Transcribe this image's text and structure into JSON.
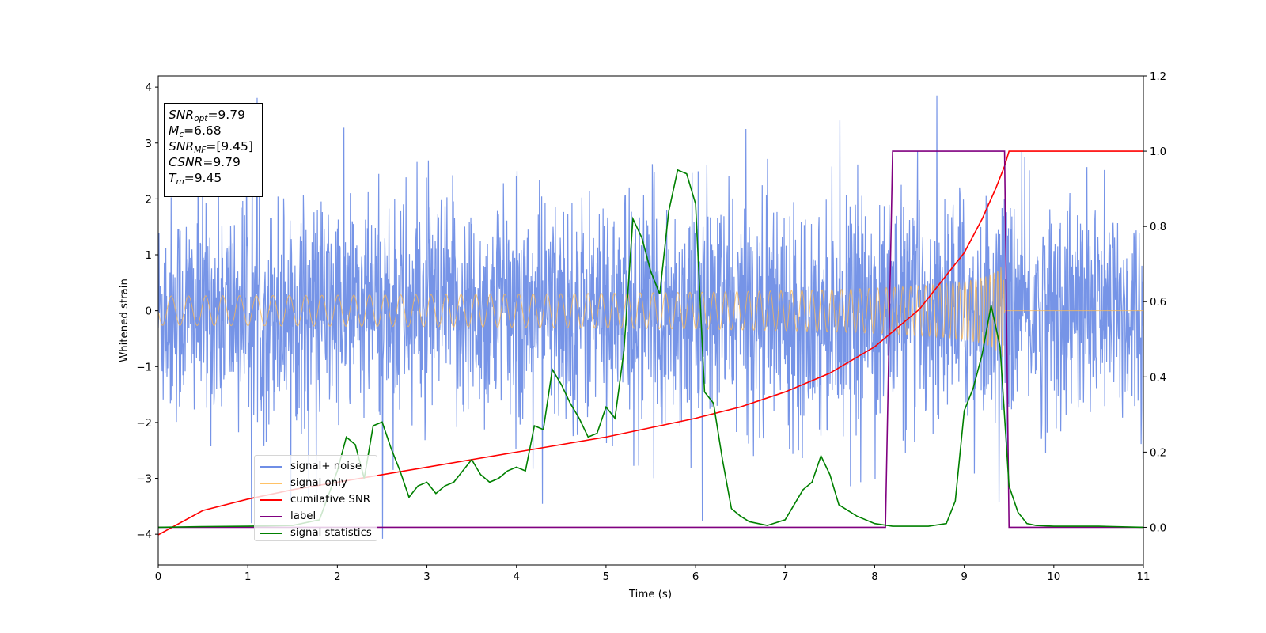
{
  "chart_data": {
    "type": "line",
    "xlabel": "Time (s)",
    "ylabel": "Whitened strain",
    "xlim": [
      0,
      11
    ],
    "ylim_left": [
      -4.55,
      4.2
    ],
    "ylim_right": [
      -0.1,
      1.2
    ],
    "x_ticks": [
      "0",
      "1",
      "2",
      "3",
      "4",
      "5",
      "6",
      "7",
      "8",
      "9",
      "10",
      "11"
    ],
    "y_left_ticks": [
      "−4",
      "−3",
      "−2",
      "−1",
      "0",
      "1",
      "2",
      "3",
      "4"
    ],
    "y_left_tick_values": [
      -4,
      -3,
      -2,
      -1,
      0,
      1,
      2,
      3,
      4
    ],
    "y_right_ticks": [
      "0.0",
      "0.2",
      "0.4",
      "0.6",
      "0.8",
      "1.0",
      "1.2"
    ],
    "y_right_tick_values": [
      0.0,
      0.2,
      0.4,
      0.6,
      0.8,
      1.0,
      1.2
    ],
    "annotation": {
      "snr_opt": {
        "base": "SNR",
        "sub": "opt",
        "value": "=9.79"
      },
      "mc": {
        "base": "M",
        "sub": "c",
        "value": "=6.68"
      },
      "snr_mf": {
        "base": "SNR",
        "sub": "MF",
        "value": "=[9.45]"
      },
      "csnr": {
        "base": "CSNR",
        "value": "=9.79"
      },
      "tm": {
        "base": "T",
        "sub": "m",
        "value": "=9.45"
      }
    },
    "series": [
      {
        "name": "signal+ noise",
        "axis": "left",
        "color": "#6f8ee6",
        "description_range": "noise with amplitude approx ±2.2, spikes to ±3.8"
      },
      {
        "name": "signal only",
        "axis": "left",
        "color": "#ffb84d",
        "description_range": "chirp amplitude growing from 0.05 to 0.9, ending at 9.45 s"
      },
      {
        "name": "cumilative SNR",
        "axis": "right",
        "color": "#ff0000",
        "x": [
          0,
          0.5,
          1,
          1.5,
          2,
          2.5,
          3,
          3.5,
          4,
          4.5,
          5,
          5.5,
          6,
          6.5,
          7,
          7.5,
          8,
          8.5,
          9,
          9.2,
          9.35,
          9.45,
          9.5,
          11
        ],
        "values": [
          -0.02,
          0.045,
          0.075,
          0.1,
          0.12,
          0.14,
          0.16,
          0.18,
          0.2,
          0.22,
          0.24,
          0.265,
          0.29,
          0.32,
          0.36,
          0.41,
          0.48,
          0.58,
          0.73,
          0.82,
          0.9,
          0.96,
          1.0,
          1.0
        ]
      },
      {
        "name": "label",
        "axis": "right",
        "color": "#800080",
        "x": [
          0,
          8.12,
          8.2,
          9.45,
          9.5,
          11
        ],
        "values": [
          0,
          0,
          1,
          1,
          0,
          0
        ]
      },
      {
        "name": "signal statistics",
        "axis": "right",
        "color": "#008000",
        "x": [
          0,
          0.5,
          1,
          1.5,
          1.8,
          2.0,
          2.1,
          2.2,
          2.3,
          2.4,
          2.5,
          2.6,
          2.7,
          2.8,
          2.9,
          3.0,
          3.1,
          3.2,
          3.3,
          3.4,
          3.5,
          3.6,
          3.7,
          3.8,
          3.9,
          4.0,
          4.1,
          4.2,
          4.3,
          4.4,
          4.5,
          4.6,
          4.7,
          4.8,
          4.9,
          5.0,
          5.1,
          5.2,
          5.3,
          5.4,
          5.5,
          5.6,
          5.7,
          5.8,
          5.9,
          6.0,
          6.1,
          6.2,
          6.3,
          6.4,
          6.5,
          6.6,
          6.8,
          7.0,
          7.1,
          7.2,
          7.3,
          7.4,
          7.5,
          7.6,
          7.8,
          8.0,
          8.2,
          8.6,
          8.8,
          8.9,
          9.0,
          9.1,
          9.2,
          9.3,
          9.4,
          9.5,
          9.6,
          9.7,
          9.8,
          10,
          10.5,
          11
        ],
        "values": [
          0.0,
          0.002,
          0.003,
          0.005,
          0.02,
          0.15,
          0.24,
          0.22,
          0.13,
          0.27,
          0.28,
          0.21,
          0.15,
          0.08,
          0.11,
          0.12,
          0.09,
          0.11,
          0.12,
          0.15,
          0.18,
          0.14,
          0.12,
          0.13,
          0.15,
          0.16,
          0.15,
          0.27,
          0.26,
          0.42,
          0.38,
          0.33,
          0.29,
          0.24,
          0.25,
          0.32,
          0.29,
          0.47,
          0.82,
          0.77,
          0.68,
          0.62,
          0.84,
          0.95,
          0.94,
          0.86,
          0.36,
          0.33,
          0.18,
          0.05,
          0.03,
          0.015,
          0.005,
          0.02,
          0.06,
          0.1,
          0.12,
          0.19,
          0.14,
          0.06,
          0.03,
          0.01,
          0.003,
          0.003,
          0.01,
          0.07,
          0.31,
          0.37,
          0.46,
          0.59,
          0.48,
          0.11,
          0.04,
          0.01,
          0.005,
          0.003,
          0.003,
          0.0
        ]
      }
    ],
    "grid": false,
    "legend_position": "lower-left"
  }
}
